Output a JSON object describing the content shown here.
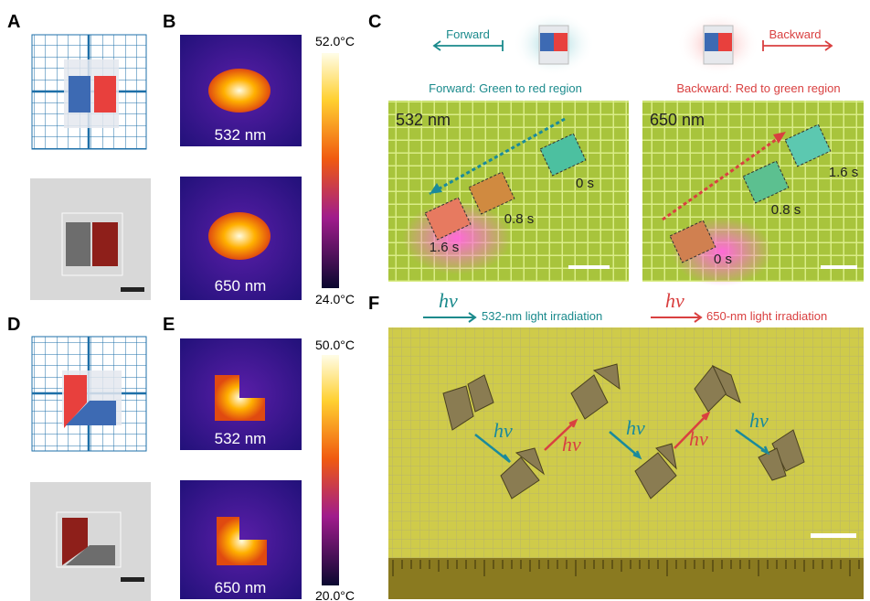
{
  "panels": {
    "A": {
      "label": "A"
    },
    "B": {
      "label": "B",
      "images": [
        "532 nm",
        "650 nm"
      ],
      "colorbar": {
        "max": "52.0°C",
        "min": "24.0°C"
      }
    },
    "C": {
      "label": "C",
      "forward": {
        "arrow": "Forward",
        "title": "Forward: Green to red region",
        "wavelength": "532 nm",
        "times": [
          "0 s",
          "0.8 s",
          "1.6 s"
        ]
      },
      "backward": {
        "arrow": "Backward",
        "title": "Backward: Red to green region",
        "wavelength": "650 nm",
        "times": [
          "1.6 s",
          "0.8 s",
          "0 s"
        ]
      }
    },
    "D": {
      "label": "D"
    },
    "E": {
      "label": "E",
      "images": [
        "532 nm",
        "650 nm"
      ],
      "colorbar": {
        "max": "50.0°C",
        "min": "20.0°C"
      }
    },
    "F": {
      "label": "F",
      "legend": [
        {
          "symbol": "hν",
          "text": "532-nm light irradiation"
        },
        {
          "symbol": "hν",
          "text": "650-nm light irradiation"
        }
      ],
      "arrow_labels": [
        "hν",
        "hν",
        "hν",
        "hν"
      ]
    }
  }
}
